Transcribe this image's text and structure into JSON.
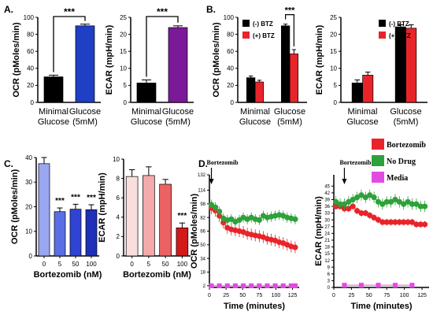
{
  "chart_data": [
    {
      "panel": "A.",
      "type": "bar",
      "categories": [
        "Minimal\nGlucose",
        "Glucose\n(5mM)"
      ],
      "values": [
        30,
        90
      ],
      "errors": [
        2,
        2
      ],
      "colors": [
        "#000000",
        "#1f3fc4"
      ],
      "ylabel": "OCR (pMoles/min)",
      "ylim": [
        0,
        100
      ],
      "yticks": [
        "0",
        "20",
        "40",
        "60",
        "80",
        "100"
      ],
      "annotations": [
        {
          "text": "***",
          "between": [
            0,
            1
          ]
        }
      ]
    },
    {
      "type": "bar",
      "categories": [
        "Minimal\nGlucose",
        "Glucose\n(5mM)"
      ],
      "values": [
        5.7,
        22.0
      ],
      "errors": [
        0.9,
        0.5
      ],
      "colors": [
        "#000000",
        "#7a1a98"
      ],
      "ylabel": "ECAR (mpH/min)",
      "ylim": [
        0,
        25
      ],
      "yticks": [
        "0",
        "5",
        "10",
        "15",
        "20",
        "25"
      ],
      "annotations": [
        {
          "text": "***",
          "between": [
            0,
            1
          ]
        }
      ]
    },
    {
      "panel": "B.",
      "type": "bar",
      "categories": [
        "Minimal\nGlucose",
        "Glucose\n(5mM)"
      ],
      "series": [
        {
          "name": "(-) BTZ",
          "values": [
            29,
            90
          ],
          "errors": [
            2,
            2
          ],
          "color": "#000000"
        },
        {
          "name": "(+) BTZ",
          "values": [
            24,
            57
          ],
          "errors": [
            2,
            5
          ],
          "color": "#e8242a"
        }
      ],
      "ylabel": "OCR (pMoles/min)",
      "ylim": [
        0,
        100
      ],
      "yticks": [
        "0",
        "20",
        "40",
        "60",
        "80",
        "100"
      ],
      "legend": "top-left",
      "annotations": [
        {
          "text": "***",
          "group": 1
        }
      ]
    },
    {
      "type": "bar",
      "categories": [
        "Minimal\nGlucose",
        "Glucose\n(5mM)"
      ],
      "series": [
        {
          "name": "(-) BTZ",
          "values": [
            5.7,
            22.2
          ],
          "errors": [
            0.9,
            0.6
          ],
          "color": "#000000"
        },
        {
          "name": "(+) BTZ",
          "values": [
            8.0,
            21.8
          ],
          "errors": [
            0.9,
            1.0
          ],
          "color": "#e8242a"
        }
      ],
      "ylabel": "ECAR (mpH/min)",
      "ylim": [
        0,
        25
      ],
      "yticks": [
        "0",
        "5",
        "10",
        "15",
        "20",
        "25"
      ],
      "legend": "top-right"
    },
    {
      "panel": "C.",
      "type": "bar",
      "categories": [
        "0",
        "5",
        "50",
        "100"
      ],
      "values": [
        37.5,
        18,
        19,
        18.8
      ],
      "errors": [
        2.5,
        1.5,
        2,
        2
      ],
      "colors": [
        "#9aa6f0",
        "#5a6ee6",
        "#2f43d4",
        "#1f2fb8"
      ],
      "labels": [
        "",
        "***",
        "***",
        "***"
      ],
      "xlabel": "Bortezomib (nM)",
      "ylabel": "OCR (pMoles/min)",
      "ylim": [
        0,
        40
      ],
      "yticks": [
        "0",
        "10",
        "20",
        "30",
        "40"
      ]
    },
    {
      "type": "bar",
      "categories": [
        "0",
        "5",
        "50",
        "100"
      ],
      "values": [
        8.2,
        8.3,
        7.4,
        2.9
      ],
      "errors": [
        0.7,
        0.9,
        0.5,
        0.5
      ],
      "colors": [
        "#fadede",
        "#f4aaaa",
        "#ec6262",
        "#d21a1a"
      ],
      "labels": [
        "",
        "",
        "",
        "***"
      ],
      "xlabel": "Bortezomib (nM)",
      "ylabel": "ECAR (mpH/min)",
      "ylim": [
        0,
        10
      ],
      "yticks": [
        "0",
        "2",
        "4",
        "6",
        "8",
        "10"
      ]
    },
    {
      "panel": "D.",
      "type": "line",
      "xlabel": "Time (minutes)",
      "ylabel": "OCR (pMoles/min)",
      "xlim": [
        0,
        135
      ],
      "xticks": [
        "0",
        "25",
        "50",
        "75",
        "100",
        "125"
      ],
      "ylim": [
        0,
        132
      ],
      "yticks": [
        "1",
        "33",
        "65",
        "97",
        "129",
        "161",
        "193",
        "225",
        "257",
        "289",
        "321",
        "353",
        "385",
        "417",
        "449",
        "481",
        "513",
        "545",
        "577",
        "609",
        "641",
        "673",
        "705",
        "737",
        "769",
        "801",
        "833",
        "865",
        "897",
        "929",
        "961",
        "993"
      ],
      "ytick_labels": [
        "2",
        "18",
        "34",
        "50",
        "66",
        "82",
        "98",
        "114",
        "132"
      ],
      "ytick_values": [
        2,
        18,
        34,
        50,
        66,
        82,
        98,
        114,
        132
      ],
      "annotation": {
        "text": "Bortezomib",
        "x": 3
      },
      "series": [
        {
          "name": "Bortezomib",
          "color": "#e8242a",
          "x": [
            3,
            9,
            15,
            21,
            27,
            33,
            39,
            45,
            51,
            57,
            63,
            69,
            75,
            81,
            87,
            93,
            99,
            105,
            111,
            117,
            123,
            129
          ],
          "y": [
            93,
            90,
            84,
            76,
            70,
            68,
            67,
            66,
            65,
            63,
            62,
            61,
            60,
            59,
            57,
            56,
            55,
            53,
            52,
            50,
            48,
            47
          ],
          "err": 7
        },
        {
          "name": "No Drug",
          "color": "#2ea13a",
          "x": [
            3,
            9,
            15,
            21,
            27,
            33,
            39,
            45,
            51,
            57,
            63,
            69,
            75,
            81,
            87,
            93,
            99,
            105,
            111,
            117,
            123,
            129
          ],
          "y": [
            97,
            94,
            89,
            81,
            79,
            80,
            77,
            79,
            82,
            80,
            82,
            80,
            79,
            84,
            82,
            83,
            84,
            85,
            84,
            82,
            81,
            80
          ],
          "err": 6
        },
        {
          "name": "Media",
          "color": "#e24be2",
          "x": [
            3,
            15,
            27,
            39,
            51,
            63,
            75,
            87,
            99,
            111,
            123,
            129
          ],
          "y": [
            2,
            2,
            2,
            2,
            2,
            2,
            2,
            2,
            2,
            2,
            2,
            2
          ],
          "err": 0
        }
      ]
    },
    {
      "type": "line",
      "xlabel": "Time (minutes)",
      "ylabel": "ECAR (mpH/min)",
      "xlim": [
        0,
        135
      ],
      "xticks": [
        "0",
        "25",
        "50",
        "75",
        "100",
        "125"
      ],
      "ylim": [
        0,
        50
      ],
      "ytick_labels": [
        "0",
        "3",
        "6",
        "9",
        "12",
        "15",
        "18",
        "21",
        "24",
        "27",
        "30",
        "33",
        "36",
        "39",
        "42",
        "45"
      ],
      "ytick_values": [
        0,
        3,
        6,
        9,
        12,
        15,
        18,
        21,
        24,
        27,
        30,
        33,
        36,
        39,
        42,
        45
      ],
      "annotation": {
        "text": "Bortezomib",
        "x": 15
      },
      "series": [
        {
          "name": "Bortezomib",
          "color": "#e8242a",
          "x": [
            3,
            9,
            15,
            21,
            27,
            33,
            39,
            45,
            51,
            57,
            63,
            69,
            75,
            81,
            87,
            93,
            99,
            105,
            111,
            117,
            123,
            129
          ],
          "y": [
            36,
            36,
            35,
            35,
            36,
            34,
            33,
            33,
            32,
            31,
            30,
            29,
            29,
            29,
            29,
            29,
            29,
            29,
            29,
            28,
            28,
            28
          ],
          "err": 1.5
        },
        {
          "name": "No Drug",
          "color": "#2ea13a",
          "x": [
            3,
            9,
            15,
            21,
            27,
            33,
            39,
            45,
            51,
            57,
            63,
            69,
            75,
            81,
            87,
            93,
            99,
            105,
            111,
            117,
            123,
            129
          ],
          "y": [
            38,
            37,
            37,
            38,
            39,
            40,
            41,
            40,
            41,
            40,
            38,
            37,
            38,
            38,
            39,
            38,
            37,
            38,
            37,
            37,
            36,
            36
          ],
          "err": 2.5
        },
        {
          "name": "Media",
          "color": "#e24be2",
          "x": [
            15,
            39,
            63,
            87,
            111
          ],
          "y": [
            1,
            1,
            1,
            1,
            1
          ],
          "err": 0
        }
      ]
    }
  ]
}
